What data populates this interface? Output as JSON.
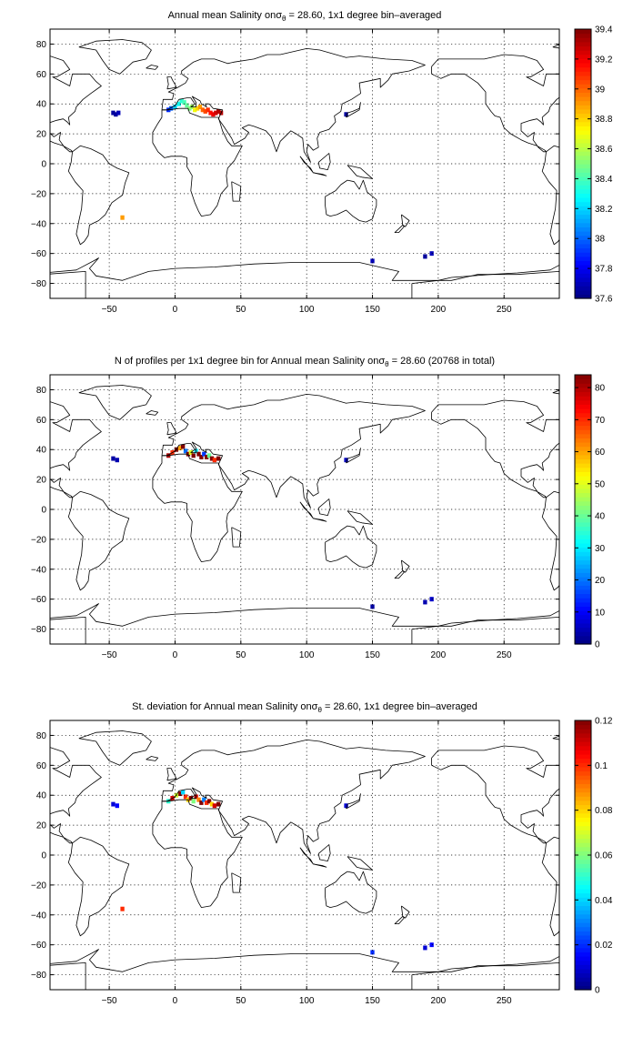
{
  "chart_data": [
    {
      "type": "heatmap",
      "title": "Annual mean Salinity on σθ = 28.60, 1x1 degree bin–averaged",
      "title_parts": [
        "Annual mean Salinity on",
        "σ",
        "θ",
        " = 28.60, 1x1 degree bin–averaged"
      ],
      "xlim": [
        -95,
        292
      ],
      "ylim": [
        -90,
        90
      ],
      "xticks": [
        -50,
        0,
        50,
        100,
        150,
        200,
        250
      ],
      "yticks": [
        -80,
        -60,
        -40,
        -20,
        0,
        20,
        40,
        60,
        80
      ],
      "colorbar": {
        "min": 37.6,
        "max": 39.4,
        "colormap": "jet",
        "ticks": [
          37.6,
          37.8,
          38,
          38.2,
          38.4,
          38.6,
          38.8,
          39,
          39.2,
          39.4
        ]
      },
      "grid": true,
      "cells": [
        {
          "lon": -5,
          "lat": 36,
          "value": 37.9
        },
        {
          "lon": -3,
          "lat": 37,
          "value": 38.0
        },
        {
          "lon": 0,
          "lat": 38,
          "value": 38.2
        },
        {
          "lon": 3,
          "lat": 40,
          "value": 38.3
        },
        {
          "lon": 5,
          "lat": 42,
          "value": 38.35
        },
        {
          "lon": 7,
          "lat": 41,
          "value": 38.4
        },
        {
          "lon": 9,
          "lat": 39,
          "value": 38.45
        },
        {
          "lon": 11,
          "lat": 37,
          "value": 38.5
        },
        {
          "lon": 13,
          "lat": 38,
          "value": 38.55
        },
        {
          "lon": 15,
          "lat": 36,
          "value": 38.7
        },
        {
          "lon": 17,
          "lat": 37,
          "value": 38.8
        },
        {
          "lon": 19,
          "lat": 38,
          "value": 38.9
        },
        {
          "lon": 21,
          "lat": 36,
          "value": 39.0
        },
        {
          "lon": 23,
          "lat": 35,
          "value": 39.05
        },
        {
          "lon": 25,
          "lat": 36,
          "value": 39.1
        },
        {
          "lon": 27,
          "lat": 34,
          "value": 39.15
        },
        {
          "lon": 29,
          "lat": 33,
          "value": 39.2
        },
        {
          "lon": 31,
          "lat": 34,
          "value": 39.25
        },
        {
          "lon": 33,
          "lat": 35,
          "value": 39.3
        },
        {
          "lon": 35,
          "lat": 34,
          "value": 39.3
        },
        {
          "lon": -47,
          "lat": 34,
          "value": 37.65
        },
        {
          "lon": -45,
          "lat": 33,
          "value": 37.65
        },
        {
          "lon": -43,
          "lat": 34,
          "value": 37.7
        },
        {
          "lon": -40,
          "lat": -36,
          "value": 38.9
        },
        {
          "lon": 130,
          "lat": 33,
          "value": 37.65
        },
        {
          "lon": 150,
          "lat": -65,
          "value": 37.7
        },
        {
          "lon": 190,
          "lat": -62,
          "value": 37.65
        },
        {
          "lon": 195,
          "lat": -60,
          "value": 37.7
        }
      ]
    },
    {
      "type": "heatmap",
      "title": "N of profiles per 1x1 degree bin for Annual mean Salinity on σθ = 28.60 (20768 in total)",
      "title_parts": [
        "N of profiles per 1x1 degree bin for Annual mean Salinity on",
        "σ",
        "θ",
        " = 28.60 (20768 in total)"
      ],
      "xlim": [
        -95,
        292
      ],
      "ylim": [
        -90,
        90
      ],
      "xticks": [
        -50,
        0,
        50,
        100,
        150,
        200,
        250
      ],
      "yticks": [
        -80,
        -60,
        -40,
        -20,
        0,
        20,
        40,
        60,
        80
      ],
      "colorbar": {
        "min": 0,
        "max": 84,
        "colormap": "jet",
        "ticks": [
          0,
          10,
          20,
          30,
          40,
          50,
          60,
          70,
          80
        ]
      },
      "grid": true,
      "cells": [
        {
          "lon": -5,
          "lat": 36,
          "value": 80
        },
        {
          "lon": -2,
          "lat": 38,
          "value": 70
        },
        {
          "lon": 1,
          "lat": 40,
          "value": 84
        },
        {
          "lon": 4,
          "lat": 41,
          "value": 60
        },
        {
          "lon": 6,
          "lat": 42,
          "value": 84
        },
        {
          "lon": 8,
          "lat": 39,
          "value": 20
        },
        {
          "lon": 10,
          "lat": 37,
          "value": 84
        },
        {
          "lon": 12,
          "lat": 38,
          "value": 50
        },
        {
          "lon": 14,
          "lat": 36,
          "value": 84
        },
        {
          "lon": 16,
          "lat": 39,
          "value": 30
        },
        {
          "lon": 18,
          "lat": 37,
          "value": 84
        },
        {
          "lon": 20,
          "lat": 35,
          "value": 84
        },
        {
          "lon": 22,
          "lat": 37,
          "value": 15
        },
        {
          "lon": 24,
          "lat": 35,
          "value": 84
        },
        {
          "lon": 26,
          "lat": 36,
          "value": 40
        },
        {
          "lon": 28,
          "lat": 34,
          "value": 84
        },
        {
          "lon": 30,
          "lat": 33,
          "value": 70
        },
        {
          "lon": 33,
          "lat": 34,
          "value": 84
        },
        {
          "lon": -47,
          "lat": 34,
          "value": 3
        },
        {
          "lon": -44,
          "lat": 33,
          "value": 4
        },
        {
          "lon": 130,
          "lat": 33,
          "value": 5
        },
        {
          "lon": 150,
          "lat": -65,
          "value": 3
        },
        {
          "lon": 190,
          "lat": -62,
          "value": 4
        },
        {
          "lon": 195,
          "lat": -60,
          "value": 6
        }
      ]
    },
    {
      "type": "heatmap",
      "title": "St. deviation for Annual mean Salinity on σθ = 28.60, 1x1 degree bin–averaged",
      "title_parts": [
        "St. deviation for Annual mean Salinity on",
        "σ",
        "θ",
        " = 28.60, 1x1 degree bin–averaged"
      ],
      "xlim": [
        -95,
        292
      ],
      "ylim": [
        -90,
        90
      ],
      "xticks": [
        -50,
        0,
        50,
        100,
        150,
        200,
        250
      ],
      "yticks": [
        -80,
        -60,
        -40,
        -20,
        0,
        20,
        40,
        60,
        80
      ],
      "colorbar": {
        "min": 0,
        "max": 0.12,
        "colormap": "jet",
        "ticks": [
          0,
          0.02,
          0.04,
          0.06,
          0.08,
          0.1,
          0.12
        ]
      },
      "grid": true,
      "cells": [
        {
          "lon": -5,
          "lat": 36,
          "value": 0.05
        },
        {
          "lon": -2,
          "lat": 38,
          "value": 0.11
        },
        {
          "lon": 1,
          "lat": 40,
          "value": 0.07
        },
        {
          "lon": 4,
          "lat": 41,
          "value": 0.12
        },
        {
          "lon": 6,
          "lat": 42,
          "value": 0.04
        },
        {
          "lon": 8,
          "lat": 39,
          "value": 0.1
        },
        {
          "lon": 10,
          "lat": 37,
          "value": 0.08
        },
        {
          "lon": 12,
          "lat": 38,
          "value": 0.12
        },
        {
          "lon": 14,
          "lat": 36,
          "value": 0.06
        },
        {
          "lon": 16,
          "lat": 39,
          "value": 0.11
        },
        {
          "lon": 18,
          "lat": 37,
          "value": 0.09
        },
        {
          "lon": 20,
          "lat": 35,
          "value": 0.12
        },
        {
          "lon": 22,
          "lat": 37,
          "value": 0.03
        },
        {
          "lon": 24,
          "lat": 35,
          "value": 0.1
        },
        {
          "lon": 26,
          "lat": 36,
          "value": 0.12
        },
        {
          "lon": 28,
          "lat": 34,
          "value": 0.08
        },
        {
          "lon": 30,
          "lat": 33,
          "value": 0.11
        },
        {
          "lon": 33,
          "lat": 34,
          "value": 0.12
        },
        {
          "lon": -47,
          "lat": 34,
          "value": 0.01
        },
        {
          "lon": -44,
          "lat": 33,
          "value": 0.015
        },
        {
          "lon": -40,
          "lat": -36,
          "value": 0.1
        },
        {
          "lon": 130,
          "lat": 33,
          "value": 0.01
        },
        {
          "lon": 150,
          "lat": -65,
          "value": 0.02
        },
        {
          "lon": 190,
          "lat": -62,
          "value": 0.01
        },
        {
          "lon": 195,
          "lat": -60,
          "value": 0.015
        }
      ]
    }
  ]
}
